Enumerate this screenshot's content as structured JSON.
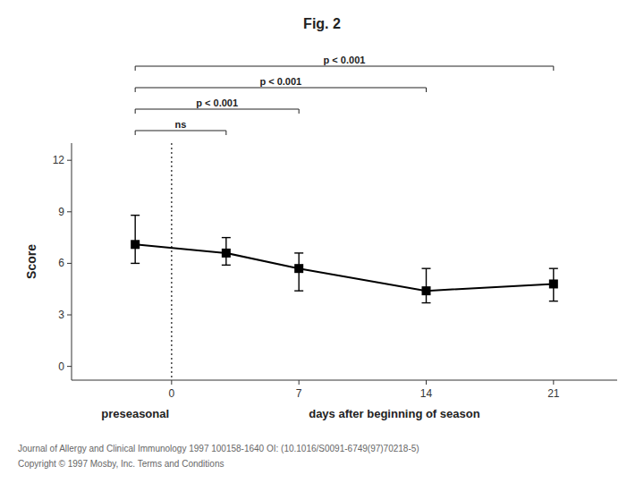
{
  "chart_data": {
    "type": "line",
    "title": "Fig. 2",
    "x": [
      -2,
      3,
      7,
      14,
      21
    ],
    "values": [
      7.1,
      6.6,
      5.7,
      4.4,
      4.8
    ],
    "error_upper": [
      1.7,
      0.9,
      0.9,
      1.3,
      0.9
    ],
    "error_lower": [
      1.1,
      0.7,
      1.3,
      0.7,
      1.0
    ],
    "color": "#000000",
    "marker": "square",
    "ylabel": "Score",
    "xlabel": "days after beginning of season",
    "ylim": [
      -0.8,
      13.0
    ],
    "yticks": [
      0,
      3,
      6,
      9,
      12
    ],
    "xlim": [
      -5.5,
      24.5
    ],
    "xticks": [
      0,
      7,
      14,
      21
    ],
    "grid": false,
    "vline": {
      "x": 0,
      "line_style": "dotted"
    },
    "annotations": [
      {
        "text": "preseasonal",
        "x": -2
      }
    ],
    "brackets": [
      {
        "text": "ns",
        "x1": -2,
        "x2": 3
      },
      {
        "text": "p < 0.001",
        "x1": -2,
        "x2": 7
      },
      {
        "text": "p < 0.001",
        "x1": -2,
        "x2": 14
      },
      {
        "text": "p < 0.001",
        "x1": -2,
        "x2": 21
      }
    ],
    "footnotes": [
      "Journal of Allergy and Clinical Immunology 1997 100158-1640 OI: (10.1016/S0091-6749(97)70218-5)",
      "Copyright © 1997 Mosby, Inc.  Terms and Conditions"
    ]
  }
}
